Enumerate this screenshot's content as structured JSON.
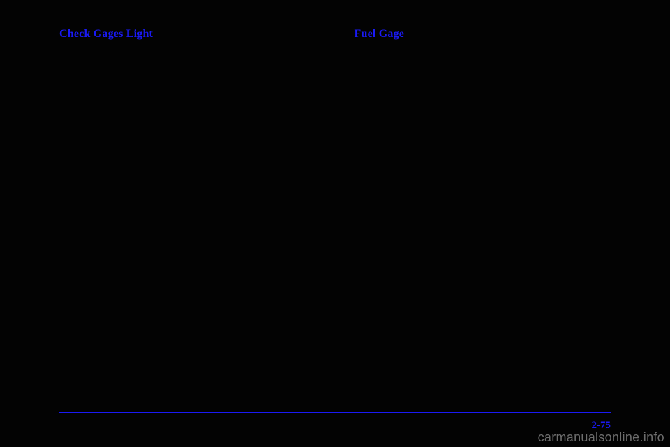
{
  "colors": {
    "background": "#030303",
    "heading": "#1a1af5",
    "footer_line": "#1a1af5",
    "page_number": "#1a1af5",
    "watermark": "#6d6d6d"
  },
  "left": {
    "heading": "Check Gages Light"
  },
  "right": {
    "heading": "Fuel Gage"
  },
  "footer": {
    "page_number": "2-75"
  },
  "watermark": "carmanualsonline.info"
}
